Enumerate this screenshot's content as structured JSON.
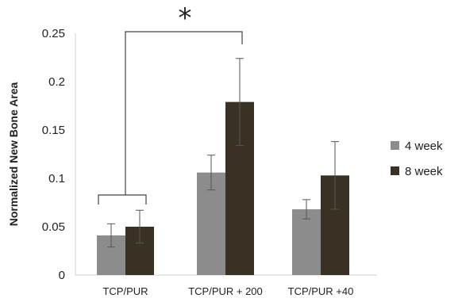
{
  "chart_data": {
    "type": "bar",
    "title": "",
    "xlabel": "",
    "ylabel": "Normalized New Bone Area",
    "ylim": [
      0,
      0.25
    ],
    "yticks": [
      "0",
      "0.05",
      "0.1",
      "0.15",
      "0.2",
      "0.25"
    ],
    "grid": false,
    "legend_position": "right",
    "categories": [
      "TCP/PUR",
      "TCP/PUR + 200",
      "TCP/PUR +40"
    ],
    "series": [
      {
        "name": "4 week",
        "values": [
          0.041,
          0.106,
          0.068
        ],
        "errors": [
          0.012,
          0.018,
          0.01
        ],
        "color": "#8c8c8c"
      },
      {
        "name": "8 week",
        "values": [
          0.05,
          0.179,
          0.103
        ],
        "errors": [
          0.017,
          0.045,
          0.035
        ],
        "color": "#3a3125"
      }
    ],
    "annotations": [
      {
        "text": "*",
        "type": "significance-bracket",
        "from": "TCP/PUR",
        "to": "TCP/PUR + 200"
      }
    ]
  }
}
